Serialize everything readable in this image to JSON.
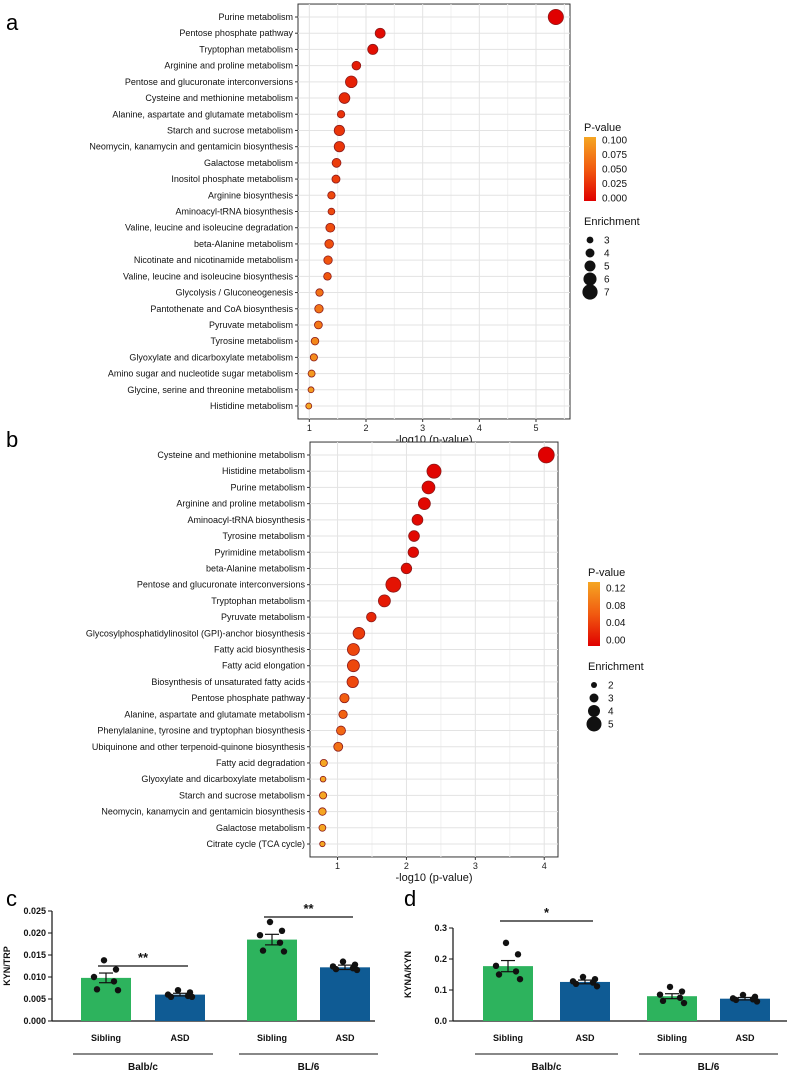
{
  "panels": {
    "a": "a",
    "b": "b",
    "c": "c",
    "d": "d"
  },
  "chart_data": [
    {
      "type": "scatter",
      "panel": "a",
      "xlabel": "-log10 (p-value)",
      "xlim": [
        0.8,
        5.6
      ],
      "xticks": [
        1,
        2,
        3,
        4,
        5
      ],
      "grid": true,
      "legend_placement": "right",
      "pvalue_legend": {
        "title": "P-value",
        "ticks": [
          "0.100",
          "0.075",
          "0.050",
          "0.025",
          "0.000"
        ],
        "max": 0.1
      },
      "enrichment_legend": {
        "title": "Enrichment",
        "values": [
          3,
          4,
          5,
          6,
          7
        ]
      },
      "pathways": [
        {
          "name": "Purine metabolism",
          "x": 5.35,
          "enrichment": 7.0
        },
        {
          "name": "Pentose phosphate pathway",
          "x": 2.25,
          "enrichment": 4.5
        },
        {
          "name": "Tryptophan metabolism",
          "x": 2.12,
          "enrichment": 4.6
        },
        {
          "name": "Arginine and proline metabolism",
          "x": 1.83,
          "enrichment": 3.9
        },
        {
          "name": "Pentose and glucuronate interconversions",
          "x": 1.74,
          "enrichment": 5.3
        },
        {
          "name": "Cysteine and methionine metabolism",
          "x": 1.62,
          "enrichment": 4.9
        },
        {
          "name": "Alanine, aspartate and glutamate metabolism",
          "x": 1.56,
          "enrichment": 3.3
        },
        {
          "name": "Starch and sucrose metabolism",
          "x": 1.53,
          "enrichment": 4.7
        },
        {
          "name": "Neomycin, kanamycin and gentamicin biosynthesis",
          "x": 1.53,
          "enrichment": 4.7
        },
        {
          "name": "Galactose metabolism",
          "x": 1.48,
          "enrichment": 4.0
        },
        {
          "name": "Inositol phosphate metabolism",
          "x": 1.47,
          "enrichment": 3.6
        },
        {
          "name": "Arginine biosynthesis",
          "x": 1.39,
          "enrichment": 3.3
        },
        {
          "name": "Aminoacyl-tRNA biosynthesis",
          "x": 1.39,
          "enrichment": 3.0
        },
        {
          "name": "Valine, leucine and isoleucine degradation",
          "x": 1.37,
          "enrichment": 4.0
        },
        {
          "name": "beta-Alanine metabolism",
          "x": 1.35,
          "enrichment": 3.9
        },
        {
          "name": "Nicotinate and nicotinamide metabolism",
          "x": 1.33,
          "enrichment": 3.8
        },
        {
          "name": "Valine, leucine and isoleucine biosynthesis",
          "x": 1.32,
          "enrichment": 3.4
        },
        {
          "name": "Glycolysis / Gluconeogenesis",
          "x": 1.18,
          "enrichment": 3.3
        },
        {
          "name": "Pantothenate and CoA biosynthesis",
          "x": 1.17,
          "enrichment": 3.8
        },
        {
          "name": "Pyruvate metabolism",
          "x": 1.16,
          "enrichment": 3.5
        },
        {
          "name": "Tyrosine metabolism",
          "x": 1.1,
          "enrichment": 3.4
        },
        {
          "name": "Glyoxylate and dicarboxylate metabolism",
          "x": 1.08,
          "enrichment": 3.2
        },
        {
          "name": "Amino sugar and nucleotide sugar metabolism",
          "x": 1.04,
          "enrichment": 3.1
        },
        {
          "name": "Glycine, serine and threonine metabolism",
          "x": 1.03,
          "enrichment": 2.6
        },
        {
          "name": "Histidine metabolism",
          "x": 0.99,
          "enrichment": 2.6
        }
      ]
    },
    {
      "type": "scatter",
      "panel": "b",
      "xlabel": "-log10 (p-value)",
      "xlim": [
        0.6,
        4.2
      ],
      "xticks": [
        1,
        2,
        3,
        4
      ],
      "grid": true,
      "legend_placement": "right",
      "pvalue_legend": {
        "title": "P-value",
        "ticks": [
          "0.12",
          "0.08",
          "0.04",
          "0.00"
        ],
        "max": 0.15
      },
      "enrichment_legend": {
        "title": "Enrichment",
        "values": [
          2,
          3,
          4,
          5
        ]
      },
      "pathways": [
        {
          "name": "Cysteine and methionine metabolism",
          "x": 4.03,
          "enrichment": 5.3
        },
        {
          "name": "Histidine metabolism",
          "x": 2.4,
          "enrichment": 4.7
        },
        {
          "name": "Purine metabolism",
          "x": 2.32,
          "enrichment": 4.3
        },
        {
          "name": "Arginine and proline metabolism",
          "x": 2.26,
          "enrichment": 4.0
        },
        {
          "name": "Aminoacyl-tRNA biosynthesis",
          "x": 2.16,
          "enrichment": 3.6
        },
        {
          "name": "Tyrosine metabolism",
          "x": 2.11,
          "enrichment": 3.6
        },
        {
          "name": "Pyrimidine metabolism",
          "x": 2.1,
          "enrichment": 3.5
        },
        {
          "name": "beta-Alanine metabolism",
          "x": 2.0,
          "enrichment": 3.5
        },
        {
          "name": "Pentose and glucuronate interconversions",
          "x": 1.81,
          "enrichment": 5.0
        },
        {
          "name": "Tryptophan metabolism",
          "x": 1.68,
          "enrichment": 4.0
        },
        {
          "name": "Pyruvate metabolism",
          "x": 1.49,
          "enrichment": 3.2
        },
        {
          "name": "Glycosylphosphatidylinositol (GPI)-anchor biosynthesis",
          "x": 1.31,
          "enrichment": 3.9
        },
        {
          "name": "Fatty acid biosynthesis",
          "x": 1.23,
          "enrichment": 4.0
        },
        {
          "name": "Fatty acid elongation",
          "x": 1.23,
          "enrichment": 4.0
        },
        {
          "name": "Biosynthesis of unsaturated fatty acids",
          "x": 1.22,
          "enrichment": 3.8
        },
        {
          "name": "Pentose phosphate pathway",
          "x": 1.1,
          "enrichment": 3.1
        },
        {
          "name": "Alanine, aspartate and glutamate metabolism",
          "x": 1.08,
          "enrichment": 2.8
        },
        {
          "name": "Phenylalanine, tyrosine and tryptophan biosynthesis",
          "x": 1.05,
          "enrichment": 3.0
        },
        {
          "name": "Ubiquinone and other terpenoid-quinone biosynthesis",
          "x": 1.01,
          "enrichment": 3.0
        },
        {
          "name": "Fatty acid degradation",
          "x": 0.8,
          "enrichment": 2.4
        },
        {
          "name": "Glyoxylate and dicarboxylate metabolism",
          "x": 0.79,
          "enrichment": 1.9
        },
        {
          "name": "Starch and sucrose metabolism",
          "x": 0.79,
          "enrichment": 2.4
        },
        {
          "name": "Neomycin, kanamycin and gentamicin biosynthesis",
          "x": 0.78,
          "enrichment": 2.5
        },
        {
          "name": "Galactose metabolism",
          "x": 0.78,
          "enrichment": 2.3
        },
        {
          "name": "Citrate cycle (TCA cycle)",
          "x": 0.78,
          "enrichment": 1.8
        }
      ]
    },
    {
      "type": "bar",
      "panel": "c",
      "ylabel": "KYN/TRP",
      "ylim": [
        0,
        0.025
      ],
      "yticks": [
        "0.000",
        "0.005",
        "0.010",
        "0.015",
        "0.020",
        "0.025"
      ],
      "groups": [
        {
          "name": "Balb/c",
          "bars": [
            {
              "label": "Sibling",
              "mean": 0.0098,
              "sem": 0.0011,
              "color": "#2db35d",
              "points": [
                0.0138,
                0.0117,
                0.01,
                0.009,
                0.0072,
                0.007
              ]
            },
            {
              "label": "ASD",
              "mean": 0.006,
              "sem": 0.0003,
              "color": "#0f5b94",
              "points": [
                0.007,
                0.0065,
                0.006,
                0.0057,
                0.0055,
                0.0055
              ]
            }
          ],
          "significance": "**"
        },
        {
          "name": "BL/6",
          "bars": [
            {
              "label": "Sibling",
              "mean": 0.0185,
              "sem": 0.0012,
              "color": "#2db35d",
              "points": [
                0.0225,
                0.0205,
                0.0195,
                0.0178,
                0.016,
                0.0158
              ]
            },
            {
              "label": "ASD",
              "mean": 0.0122,
              "sem": 0.0005,
              "color": "#0f5b94",
              "points": [
                0.0135,
                0.0128,
                0.0124,
                0.012,
                0.0118,
                0.0116
              ]
            }
          ],
          "significance": "**"
        }
      ]
    },
    {
      "type": "bar",
      "panel": "d",
      "ylabel": "KYNA/KYN",
      "ylim": [
        0,
        0.3
      ],
      "yticks": [
        "0.0",
        "0.1",
        "0.2",
        "0.3"
      ],
      "groups": [
        {
          "name": "Balb/c",
          "bars": [
            {
              "label": "Sibling",
              "mean": 0.177,
              "sem": 0.018,
              "color": "#2db35d",
              "points": [
                0.252,
                0.215,
                0.178,
                0.16,
                0.15,
                0.135
              ]
            },
            {
              "label": "ASD",
              "mean": 0.126,
              "sem": 0.006,
              "color": "#0f5b94",
              "points": [
                0.142,
                0.135,
                0.128,
                0.124,
                0.12,
                0.112
              ]
            }
          ],
          "significance": "*"
        },
        {
          "name": "BL/6",
          "bars": [
            {
              "label": "Sibling",
              "mean": 0.08,
              "sem": 0.008,
              "color": "#2db35d",
              "points": [
                0.11,
                0.095,
                0.085,
                0.075,
                0.065,
                0.058
              ]
            },
            {
              "label": "ASD",
              "mean": 0.072,
              "sem": 0.004,
              "color": "#0f5b94",
              "points": [
                0.084,
                0.078,
                0.073,
                0.07,
                0.068,
                0.063
              ]
            }
          ],
          "significance": ""
        }
      ]
    }
  ]
}
